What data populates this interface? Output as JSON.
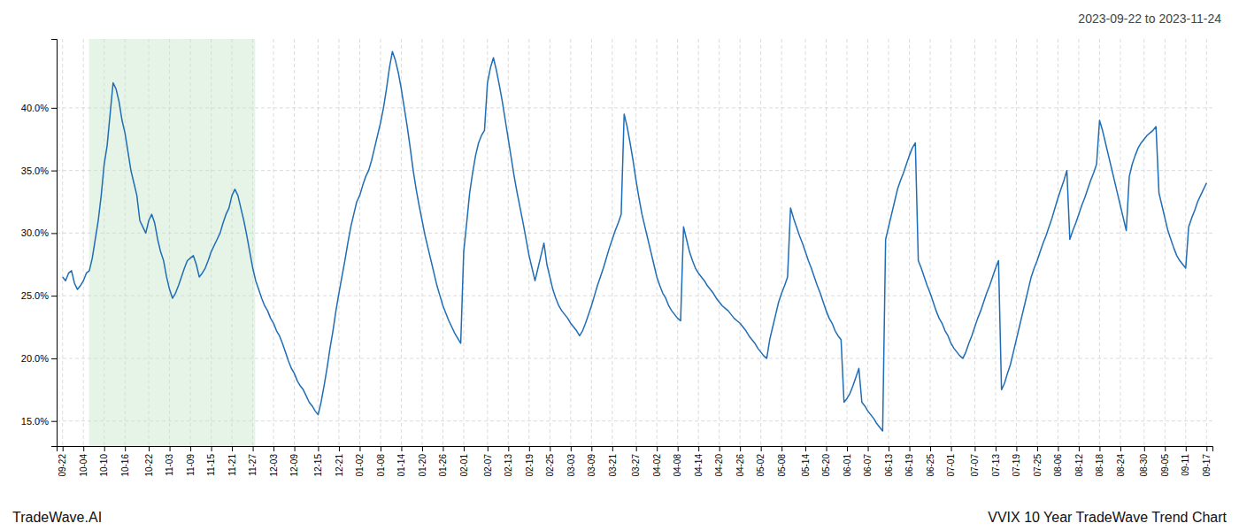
{
  "chart_data": {
    "type": "line",
    "title": "2023-09-22 to 2023-11-24",
    "annotations": [
      "TradeWave.AI",
      "VVIX 10 Year TradeWave Trend Chart"
    ],
    "color": "#1f6db5",
    "grid": true,
    "ylim": [
      0.13,
      0.455
    ],
    "yticks": [
      {
        "value": 0.15,
        "label": "15.0%"
      },
      {
        "value": 0.2,
        "label": "20.0%"
      },
      {
        "value": 0.25,
        "label": "25.0%"
      },
      {
        "value": 0.3,
        "label": "30.0%"
      },
      {
        "value": 0.35,
        "label": "35.0%"
      },
      {
        "value": 0.4,
        "label": "40.0%"
      }
    ],
    "highlight": {
      "start": 8.878,
      "end": 64.848,
      "color": "#c8e6c9"
    },
    "categories": [
      "09-22",
      null,
      null,
      null,
      null,
      null,
      null,
      "10-04",
      null,
      null,
      null,
      null,
      null,
      null,
      "10-10",
      null,
      null,
      null,
      null,
      null,
      null,
      "10-16",
      null,
      null,
      null,
      null,
      null,
      null,
      null,
      "10-22",
      null,
      null,
      null,
      null,
      null,
      null,
      "11-03",
      null,
      null,
      null,
      null,
      null,
      null,
      "11-09",
      null,
      null,
      null,
      null,
      null,
      null,
      "11-15",
      null,
      null,
      null,
      null,
      null,
      null,
      "11-21",
      null,
      null,
      null,
      null,
      null,
      null,
      "11-27",
      null,
      null,
      null,
      null,
      null,
      null,
      "12-03",
      null,
      null,
      null,
      null,
      null,
      null,
      "12-09",
      null,
      null,
      null,
      null,
      null,
      null,
      null,
      "12-15",
      null,
      null,
      null,
      null,
      null,
      null,
      "12-21",
      null,
      null,
      null,
      null,
      null,
      null,
      "01-02",
      null,
      null,
      null,
      null,
      null,
      null,
      "01-08",
      null,
      null,
      null,
      null,
      null,
      null,
      "01-14",
      null,
      null,
      null,
      null,
      null,
      null,
      "01-20",
      null,
      null,
      null,
      null,
      null,
      null,
      "01-26",
      null,
      null,
      null,
      null,
      null,
      null,
      "02-01",
      null,
      null,
      null,
      null,
      null,
      null,
      null,
      "02-07",
      null,
      null,
      null,
      null,
      null,
      null,
      "02-13",
      null,
      null,
      null,
      null,
      null,
      null,
      "02-19",
      null,
      null,
      null,
      null,
      null,
      null,
      "02-25",
      null,
      null,
      null,
      null,
      null,
      null,
      "03-03",
      null,
      null,
      null,
      null,
      null,
      null,
      "03-09",
      null,
      null,
      null,
      null,
      null,
      null,
      "03-21",
      null,
      null,
      null,
      null,
      null,
      null,
      null,
      "03-27",
      null,
      null,
      null,
      null,
      null,
      null,
      "04-02",
      null,
      null,
      null,
      null,
      null,
      null,
      "04-08",
      null,
      null,
      null,
      null,
      null,
      null,
      "04-14",
      null,
      null,
      null,
      null,
      null,
      null,
      "04-20",
      null,
      null,
      null,
      null,
      null,
      null,
      "04-26",
      null,
      null,
      null,
      null,
      null,
      null,
      "05-02",
      null,
      null,
      null,
      null,
      null,
      null,
      "05-08",
      null,
      null,
      null,
      null,
      null,
      null,
      null,
      "05-14",
      null,
      null,
      null,
      null,
      null,
      null,
      "05-20",
      null,
      null,
      null,
      null,
      null,
      null,
      "06-01",
      null,
      null,
      null,
      null,
      null,
      null,
      "06-07",
      null,
      null,
      null,
      null,
      null,
      null,
      "06-13",
      null,
      null,
      null,
      null,
      null,
      null,
      "06-19",
      null,
      null,
      null,
      null,
      null,
      null,
      "06-25",
      null,
      null,
      null,
      null,
      null,
      null,
      "07-01",
      null,
      null,
      null,
      null,
      null,
      null,
      null,
      "07-07",
      null,
      null,
      null,
      null,
      null,
      null,
      "07-13",
      null,
      null,
      null,
      null,
      null,
      null,
      "07-19",
      null,
      null,
      null,
      null,
      null,
      null,
      "07-25",
      null,
      null,
      null,
      null,
      null,
      null,
      "08-06",
      null,
      null,
      null,
      null,
      null,
      null,
      "08-12",
      null,
      null,
      null,
      null,
      null,
      null,
      "08-18",
      null,
      null,
      null,
      null,
      null,
      null,
      "08-24",
      null,
      null,
      null,
      null,
      null,
      null,
      null,
      "08-30",
      null,
      null,
      null,
      null,
      null,
      null,
      "09-05",
      null,
      null,
      null,
      null,
      null,
      null,
      "09-11",
      null,
      null,
      null,
      null,
      null,
      null,
      "09-17"
    ],
    "values": [
      0.265,
      0.262,
      0.268,
      0.27,
      0.26,
      0.255,
      0.258,
      0.262,
      0.268,
      0.27,
      0.28,
      0.295,
      0.31,
      0.33,
      0.355,
      0.37,
      0.395,
      0.42,
      0.415,
      0.405,
      0.39,
      0.38,
      0.365,
      0.35,
      0.34,
      0.33,
      0.31,
      0.305,
      0.3,
      0.31,
      0.315,
      0.308,
      0.295,
      0.285,
      0.278,
      0.265,
      0.255,
      0.248,
      0.252,
      0.258,
      0.265,
      0.272,
      0.278,
      0.28,
      0.282,
      0.275,
      0.265,
      0.268,
      0.272,
      0.278,
      0.285,
      0.29,
      0.295,
      0.3,
      0.308,
      0.315,
      0.32,
      0.33,
      0.335,
      0.33,
      0.32,
      0.31,
      0.298,
      0.285,
      0.272,
      0.262,
      0.255,
      0.248,
      0.242,
      0.238,
      0.232,
      0.228,
      0.222,
      0.218,
      0.212,
      0.205,
      0.198,
      0.192,
      0.188,
      0.182,
      0.178,
      0.175,
      0.17,
      0.165,
      0.162,
      0.158,
      0.155,
      0.165,
      0.178,
      0.192,
      0.208,
      0.222,
      0.238,
      0.252,
      0.265,
      0.278,
      0.292,
      0.305,
      0.315,
      0.325,
      0.33,
      0.338,
      0.345,
      0.35,
      0.358,
      0.368,
      0.378,
      0.388,
      0.4,
      0.415,
      0.432,
      0.445,
      0.438,
      0.428,
      0.415,
      0.4,
      0.385,
      0.368,
      0.35,
      0.335,
      0.322,
      0.31,
      0.298,
      0.288,
      0.278,
      0.268,
      0.258,
      0.25,
      0.242,
      0.236,
      0.23,
      0.225,
      0.22,
      0.216,
      0.212,
      0.285,
      0.308,
      0.332,
      0.348,
      0.362,
      0.372,
      0.378,
      0.382,
      0.42,
      0.432,
      0.44,
      0.43,
      0.418,
      0.405,
      0.39,
      0.375,
      0.36,
      0.345,
      0.332,
      0.32,
      0.308,
      0.295,
      0.282,
      0.272,
      0.262,
      0.272,
      0.282,
      0.292,
      0.275,
      0.265,
      0.255,
      0.248,
      0.242,
      0.238,
      0.235,
      0.232,
      0.228,
      0.225,
      0.222,
      0.218,
      0.222,
      0.228,
      0.235,
      0.242,
      0.25,
      0.258,
      0.265,
      0.272,
      0.28,
      0.288,
      0.295,
      0.302,
      0.308,
      0.315,
      0.395,
      0.385,
      0.372,
      0.358,
      0.342,
      0.328,
      0.315,
      0.305,
      0.295,
      0.285,
      0.275,
      0.265,
      0.258,
      0.252,
      0.248,
      0.242,
      0.238,
      0.235,
      0.232,
      0.23,
      0.305,
      0.295,
      0.285,
      0.278,
      0.272,
      0.268,
      0.265,
      0.262,
      0.258,
      0.255,
      0.252,
      0.248,
      0.245,
      0.242,
      0.24,
      0.238,
      0.235,
      0.232,
      0.23,
      0.228,
      0.225,
      0.222,
      0.218,
      0.215,
      0.212,
      0.208,
      0.205,
      0.202,
      0.2,
      0.215,
      0.225,
      0.235,
      0.245,
      0.252,
      0.258,
      0.265,
      0.32,
      0.312,
      0.305,
      0.298,
      0.292,
      0.285,
      0.278,
      0.272,
      0.265,
      0.258,
      0.252,
      0.245,
      0.238,
      0.232,
      0.228,
      0.222,
      0.218,
      0.215,
      0.165,
      0.168,
      0.172,
      0.178,
      0.185,
      0.192,
      0.165,
      0.162,
      0.158,
      0.155,
      0.152,
      0.148,
      0.145,
      0.142,
      0.295,
      0.305,
      0.315,
      0.325,
      0.335,
      0.342,
      0.348,
      0.355,
      0.362,
      0.368,
      0.372,
      0.278,
      0.272,
      0.265,
      0.258,
      0.252,
      0.245,
      0.238,
      0.232,
      0.228,
      0.222,
      0.218,
      0.212,
      0.208,
      0.205,
      0.202,
      0.2,
      0.205,
      0.212,
      0.218,
      0.225,
      0.232,
      0.238,
      0.245,
      0.252,
      0.258,
      0.265,
      0.272,
      0.278,
      0.175,
      0.18,
      0.188,
      0.195,
      0.205,
      0.215,
      0.225,
      0.235,
      0.245,
      0.255,
      0.265,
      0.272,
      0.278,
      0.285,
      0.292,
      0.298,
      0.305,
      0.312,
      0.32,
      0.328,
      0.335,
      0.342,
      0.35,
      0.295,
      0.302,
      0.308,
      0.315,
      0.322,
      0.328,
      0.335,
      0.342,
      0.348,
      0.355,
      0.39,
      0.382,
      0.372,
      0.362,
      0.352,
      0.342,
      0.332,
      0.322,
      0.312,
      0.302,
      0.345,
      0.355,
      0.362,
      0.368,
      0.372,
      0.375,
      0.378,
      0.38,
      0.382,
      0.385,
      0.332,
      0.322,
      0.312,
      0.302,
      0.295,
      0.288,
      0.282,
      0.278,
      0.275,
      0.272,
      0.305,
      0.312,
      0.318,
      0.325,
      0.33,
      0.335,
      0.34
    ]
  }
}
